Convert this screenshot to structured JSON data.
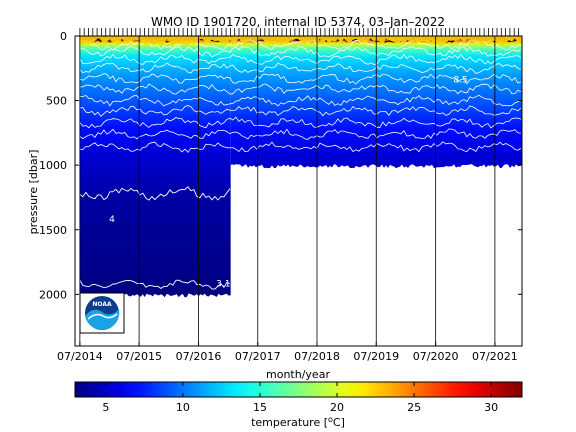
{
  "chart_data": {
    "type": "heatmap",
    "title": "WMO ID 1901720, internal ID 5374, 03–Jan–2022",
    "xlabel": "month/year",
    "ylabel": "pressure [dbar]",
    "xlim": [
      "2014-06-01",
      "2021-12-15"
    ],
    "ylim": [
      2400,
      0
    ],
    "y_reversed": true,
    "x_ticks": [
      "07/2014",
      "07/2015",
      "07/2016",
      "07/2017",
      "07/2018",
      "07/2019",
      "07/2020",
      "07/2021"
    ],
    "y_ticks": [
      0,
      500,
      1000,
      1500,
      2000
    ],
    "colorbar": {
      "label": "temperature [°C]",
      "label_prefix": "temperature [",
      "label_unit": "o",
      "label_suffix": "C]",
      "range": [
        3,
        32
      ],
      "ticks": [
        5,
        10,
        15,
        20,
        25,
        30
      ],
      "colormap": "jet"
    },
    "coverage": [
      {
        "from": "2014-07-01",
        "to": "2017-01-15",
        "max_pressure_dbar": 2000
      },
      {
        "from": "2017-01-15",
        "to": "2021-12-15",
        "max_pressure_dbar": 1000
      }
    ],
    "temperature_profile": [
      {
        "pressure": 0,
        "temperature": 28
      },
      {
        "pressure": 20,
        "temperature": 27
      },
      {
        "pressure": 60,
        "temperature": 20
      },
      {
        "pressure": 100,
        "temperature": 16
      },
      {
        "pressure": 160,
        "temperature": 13
      },
      {
        "pressure": 300,
        "temperature": 11
      },
      {
        "pressure": 500,
        "temperature": 9
      },
      {
        "pressure": 700,
        "temperature": 7
      },
      {
        "pressure": 900,
        "temperature": 5.5
      },
      {
        "pressure": 1000,
        "temperature": 5
      },
      {
        "pressure": 1250,
        "temperature": 4
      },
      {
        "pressure": 1600,
        "temperature": 3.5
      },
      {
        "pressure": 2000,
        "temperature": 3
      }
    ],
    "contour_labels": [
      {
        "text": "8.5",
        "date": "2020-12-01",
        "pressure": 330
      },
      {
        "text": "4",
        "date": "2015-01-15",
        "pressure": 1410
      },
      {
        "text": "3.1",
        "date": "2016-12-01",
        "pressure": 1910
      }
    ],
    "annotations": [
      "NOAA"
    ]
  }
}
